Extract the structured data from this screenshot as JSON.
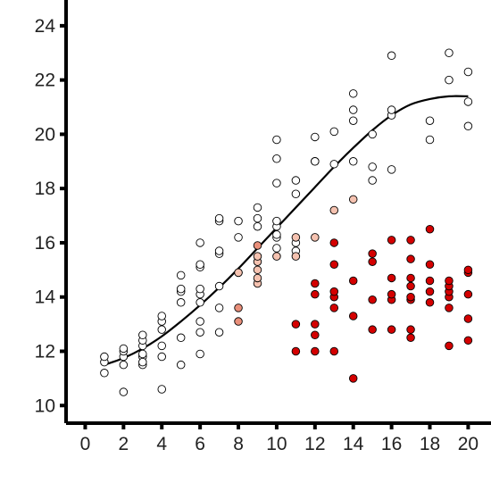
{
  "chart_data": {
    "type": "scatter",
    "title": "",
    "xlabel": "",
    "ylabel": "",
    "xlim": [
      -1,
      21.1
    ],
    "ylim": [
      9.35,
      24.95
    ],
    "x_ticks": [
      "0",
      "2",
      "4",
      "6",
      "8",
      "10",
      "12",
      "14",
      "16",
      "18",
      "20"
    ],
    "y_ticks": [
      "10",
      "12",
      "14",
      "16",
      "18",
      "20",
      "22",
      "24"
    ],
    "grid": false,
    "legend": "none",
    "colors": {
      "white": "#ffffff",
      "light": "#f5c2b0",
      "medium": "#e98f7a",
      "red": "#d40000",
      "trend": "#000000"
    },
    "series": [
      {
        "color": "white",
        "points": [
          [
            1,
            11.2
          ],
          [
            1,
            11.6
          ],
          [
            1,
            11.8
          ],
          [
            2,
            10.5
          ],
          [
            2,
            11.5
          ],
          [
            2,
            11.8
          ],
          [
            2,
            12.0
          ],
          [
            2,
            12.1
          ],
          [
            3,
            11.5
          ],
          [
            3,
            11.8
          ],
          [
            3,
            11.9
          ],
          [
            3,
            12.2
          ],
          [
            3,
            12.4
          ],
          [
            3,
            12.6
          ],
          [
            3,
            11.6
          ],
          [
            4,
            10.6
          ],
          [
            4,
            11.8
          ],
          [
            4,
            12.2
          ],
          [
            4,
            12.8
          ],
          [
            4,
            13.1
          ],
          [
            4,
            13.3
          ],
          [
            5,
            11.5
          ],
          [
            5,
            12.5
          ],
          [
            5,
            13.8
          ],
          [
            5,
            14.2
          ],
          [
            5,
            14.3
          ],
          [
            5,
            14.8
          ],
          [
            6,
            11.9
          ],
          [
            6,
            12.7
          ],
          [
            6,
            13.1
          ],
          [
            6,
            13.8
          ],
          [
            6,
            14.1
          ],
          [
            6,
            14.3
          ],
          [
            6,
            15.1
          ],
          [
            6,
            15.2
          ],
          [
            6,
            16.0
          ],
          [
            7,
            12.7
          ],
          [
            7,
            13.6
          ],
          [
            7,
            14.4
          ],
          [
            7,
            15.6
          ],
          [
            7,
            15.7
          ],
          [
            7,
            16.8
          ],
          [
            7,
            16.9
          ],
          [
            8,
            14.9
          ],
          [
            8,
            16.2
          ],
          [
            8,
            16.8
          ],
          [
            9,
            16.6
          ],
          [
            9,
            16.9
          ],
          [
            9,
            17.3
          ],
          [
            10,
            15.8
          ],
          [
            10,
            16.2
          ],
          [
            10,
            16.3
          ],
          [
            10,
            16.6
          ],
          [
            10,
            16.8
          ],
          [
            10,
            18.2
          ],
          [
            10,
            19.1
          ],
          [
            10,
            19.8
          ],
          [
            11,
            15.7
          ],
          [
            11,
            16.0
          ],
          [
            11,
            17.8
          ],
          [
            11,
            18.3
          ],
          [
            12,
            19.0
          ],
          [
            12,
            19.0
          ],
          [
            12,
            19.9
          ],
          [
            13,
            18.9
          ],
          [
            13,
            20.1
          ],
          [
            14,
            19.0
          ],
          [
            14,
            20.5
          ],
          [
            14,
            20.9
          ],
          [
            14,
            21.5
          ],
          [
            15,
            18.3
          ],
          [
            15,
            18.8
          ],
          [
            15,
            20.0
          ],
          [
            16,
            18.7
          ],
          [
            16,
            20.7
          ],
          [
            16,
            20.9
          ],
          [
            16,
            22.9
          ],
          [
            18,
            19.8
          ],
          [
            18,
            20.5
          ],
          [
            19,
            22.0
          ],
          [
            19,
            23.0
          ],
          [
            20,
            20.3
          ],
          [
            20,
            21.2
          ],
          [
            20,
            22.3
          ]
        ]
      },
      {
        "color": "light",
        "points": [
          [
            8,
            14.9
          ],
          [
            9,
            14.5
          ],
          [
            9,
            14.7
          ],
          [
            9,
            15.0
          ],
          [
            9,
            15.3
          ],
          [
            9,
            15.5
          ],
          [
            10,
            15.5
          ],
          [
            11,
            15.5
          ],
          [
            11,
            16.2
          ],
          [
            12,
            16.2
          ],
          [
            13,
            17.2
          ],
          [
            14,
            17.6
          ]
        ]
      },
      {
        "color": "medium",
        "points": [
          [
            8,
            13.1
          ],
          [
            8,
            13.6
          ],
          [
            9,
            15.9
          ]
        ]
      },
      {
        "color": "red",
        "points": [
          [
            11,
            12.0
          ],
          [
            11,
            13.0
          ],
          [
            12,
            12.0
          ],
          [
            12,
            12.6
          ],
          [
            12,
            13.0
          ],
          [
            12,
            14.1
          ],
          [
            12,
            14.5
          ],
          [
            13,
            12.0
          ],
          [
            13,
            13.6
          ],
          [
            13,
            14.0
          ],
          [
            13,
            14.2
          ],
          [
            13,
            15.2
          ],
          [
            13,
            16.0
          ],
          [
            14,
            11.0
          ],
          [
            14,
            13.3
          ],
          [
            14,
            14.6
          ],
          [
            15,
            12.8
          ],
          [
            15,
            13.9
          ],
          [
            15,
            15.3
          ],
          [
            15,
            15.6
          ],
          [
            16,
            12.8
          ],
          [
            16,
            13.9
          ],
          [
            16,
            14.1
          ],
          [
            16,
            14.7
          ],
          [
            16,
            16.1
          ],
          [
            17,
            12.5
          ],
          [
            17,
            12.8
          ],
          [
            17,
            13.9
          ],
          [
            17,
            14.0
          ],
          [
            17,
            14.4
          ],
          [
            17,
            14.7
          ],
          [
            17,
            15.4
          ],
          [
            17,
            16.1
          ],
          [
            18,
            13.8
          ],
          [
            18,
            14.2
          ],
          [
            18,
            14.6
          ],
          [
            18,
            15.2
          ],
          [
            18,
            16.5
          ],
          [
            19,
            12.2
          ],
          [
            19,
            13.6
          ],
          [
            19,
            14.0
          ],
          [
            19,
            14.2
          ],
          [
            19,
            14.4
          ],
          [
            19,
            14.6
          ],
          [
            20,
            12.4
          ],
          [
            20,
            13.2
          ],
          [
            20,
            14.1
          ],
          [
            20,
            14.9
          ],
          [
            20,
            15.0
          ]
        ]
      }
    ],
    "trend_line": [
      [
        1,
        11.5
      ],
      [
        2,
        11.75
      ],
      [
        3,
        12.1
      ],
      [
        4,
        12.55
      ],
      [
        5,
        13.1
      ],
      [
        6,
        13.7
      ],
      [
        7,
        14.35
      ],
      [
        8,
        15.05
      ],
      [
        9,
        15.8
      ],
      [
        10,
        16.55
      ],
      [
        11,
        17.3
      ],
      [
        12,
        18.05
      ],
      [
        13,
        18.8
      ],
      [
        14,
        19.5
      ],
      [
        15,
        20.15
      ],
      [
        16,
        20.7
      ],
      [
        17,
        21.1
      ],
      [
        18,
        21.3
      ],
      [
        19,
        21.4
      ],
      [
        20,
        21.4
      ]
    ]
  }
}
